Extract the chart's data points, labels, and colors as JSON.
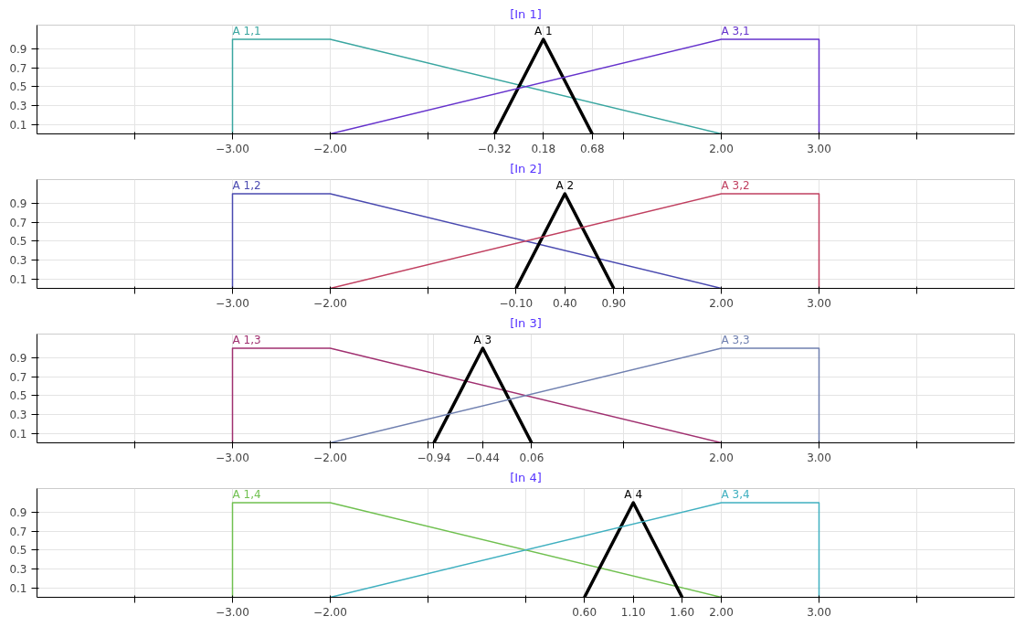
{
  "chart_data": [
    {
      "type": "line",
      "title": "[In 1]",
      "xlim": [
        -5,
        5
      ],
      "ylim": [
        0,
        1.15
      ],
      "grid": true,
      "marker": "none",
      "xticks": [
        {
          "value": -4,
          "label": null
        },
        {
          "value": -3,
          "label": "−3.00"
        },
        {
          "value": -2,
          "label": "−2.00"
        },
        {
          "value": -1,
          "label": null
        },
        {
          "value": -0.32,
          "label": "−0.32"
        },
        {
          "value": 0.18,
          "label": "0.18"
        },
        {
          "value": 0.68,
          "label": "0.68"
        },
        {
          "value": 1,
          "label": null
        },
        {
          "value": 2,
          "label": "2.00"
        },
        {
          "value": 3,
          "label": "3.00"
        },
        {
          "value": 4,
          "label": null
        }
      ],
      "yticks": [
        0.1,
        0.3,
        0.5,
        0.7,
        0.9
      ],
      "series": [
        {
          "name": "A 1,1",
          "color": "#3aa6a0",
          "x": [
            -3,
            -3,
            -2,
            2
          ],
          "values": [
            0,
            1,
            1,
            0
          ]
        },
        {
          "name": "A 1",
          "color": "#000000",
          "x": [
            -0.32,
            0.18,
            0.68
          ],
          "values": [
            0,
            1,
            0
          ]
        },
        {
          "name": "A 3,1",
          "color": "#6633cc",
          "x": [
            -2,
            2,
            3,
            3
          ],
          "values": [
            0,
            1,
            1,
            0
          ]
        }
      ]
    },
    {
      "type": "line",
      "title": "[In 2]",
      "xlim": [
        -5,
        5
      ],
      "ylim": [
        0,
        1.15
      ],
      "grid": true,
      "marker": "none",
      "xticks": [
        {
          "value": -4,
          "label": null
        },
        {
          "value": -3,
          "label": "−3.00"
        },
        {
          "value": -2,
          "label": "−2.00"
        },
        {
          "value": -1,
          "label": null
        },
        {
          "value": -0.1,
          "label": "−0.10"
        },
        {
          "value": 0.4,
          "label": "0.40"
        },
        {
          "value": 0.9,
          "label": "0.90"
        },
        {
          "value": 1,
          "label": null
        },
        {
          "value": 2,
          "label": "2.00"
        },
        {
          "value": 3,
          "label": "3.00"
        },
        {
          "value": 4,
          "label": null
        }
      ],
      "yticks": [
        0.1,
        0.3,
        0.5,
        0.7,
        0.9
      ],
      "series": [
        {
          "name": "A 1,2",
          "color": "#4a4ab0",
          "x": [
            -3,
            -3,
            -2,
            2
          ],
          "values": [
            0,
            1,
            1,
            0
          ]
        },
        {
          "name": "A 2",
          "color": "#000000",
          "x": [
            -0.1,
            0.4,
            0.9
          ],
          "values": [
            0,
            1,
            0
          ]
        },
        {
          "name": "A 3,2",
          "color": "#c04060",
          "x": [
            -2,
            2,
            3,
            3
          ],
          "values": [
            0,
            1,
            1,
            0
          ]
        }
      ]
    },
    {
      "type": "line",
      "title": "[In 3]",
      "xlim": [
        -5,
        5
      ],
      "ylim": [
        0,
        1.15
      ],
      "grid": true,
      "marker": "none",
      "xticks": [
        {
          "value": -4,
          "label": null
        },
        {
          "value": -3,
          "label": "−3.00"
        },
        {
          "value": -2,
          "label": "−2.00"
        },
        {
          "value": -1,
          "label": null
        },
        {
          "value": -0.94,
          "label": "−0.94"
        },
        {
          "value": -0.44,
          "label": "−0.44"
        },
        {
          "value": 0.06,
          "label": "0.06"
        },
        {
          "value": 1,
          "label": null
        },
        {
          "value": 2,
          "label": "2.00"
        },
        {
          "value": 3,
          "label": "3.00"
        },
        {
          "value": 4,
          "label": null
        }
      ],
      "yticks": [
        0.1,
        0.3,
        0.5,
        0.7,
        0.9
      ],
      "series": [
        {
          "name": "A 1,3",
          "color": "#a03070",
          "x": [
            -3,
            -3,
            -2,
            2
          ],
          "values": [
            0,
            1,
            1,
            0
          ]
        },
        {
          "name": "A 3",
          "color": "#000000",
          "x": [
            -0.94,
            -0.44,
            0.06
          ],
          "values": [
            0,
            1,
            0
          ]
        },
        {
          "name": "A 3,3",
          "color": "#7080b0",
          "x": [
            -2,
            2,
            3,
            3
          ],
          "values": [
            0,
            1,
            1,
            0
          ]
        }
      ]
    },
    {
      "type": "line",
      "title": "[In 4]",
      "xlim": [
        -5,
        5
      ],
      "ylim": [
        0,
        1.15
      ],
      "grid": true,
      "marker": "none",
      "xticks": [
        {
          "value": -4,
          "label": null
        },
        {
          "value": -3,
          "label": "−3.00"
        },
        {
          "value": -2,
          "label": "−2.00"
        },
        {
          "value": -1,
          "label": null
        },
        {
          "value": 0,
          "label": null
        },
        {
          "value": 0.6,
          "label": "0.60"
        },
        {
          "value": 1.1,
          "label": "1.10"
        },
        {
          "value": 1.6,
          "label": "1.60"
        },
        {
          "value": 2,
          "label": "2.00"
        },
        {
          "value": 3,
          "label": "3.00"
        },
        {
          "value": 4,
          "label": null
        }
      ],
      "yticks": [
        0.1,
        0.3,
        0.5,
        0.7,
        0.9
      ],
      "series": [
        {
          "name": "A 1,4",
          "color": "#70c050",
          "x": [
            -3,
            -3,
            -2,
            2
          ],
          "values": [
            0,
            1,
            1,
            0
          ]
        },
        {
          "name": "A 4",
          "color": "#000000",
          "x": [
            0.6,
            1.1,
            1.6
          ],
          "values": [
            0,
            1,
            0
          ]
        },
        {
          "name": "A 3,4",
          "color": "#40b0c0",
          "x": [
            -2,
            2,
            3,
            3
          ],
          "values": [
            0,
            1,
            1,
            0
          ]
        }
      ]
    }
  ]
}
